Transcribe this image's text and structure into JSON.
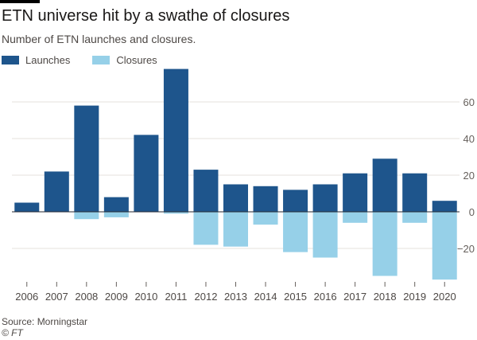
{
  "chart_data": {
    "type": "bar",
    "title": "ETN universe hit by a swathe of closures",
    "subtitle": "Number of ETN launches and closures.",
    "categories": [
      "2006",
      "2007",
      "2008",
      "2009",
      "2010",
      "2011",
      "2012",
      "2013",
      "2014",
      "2015",
      "2016",
      "2017",
      "2018",
      "2019",
      "2020"
    ],
    "series": [
      {
        "name": "Launches",
        "color": "#1e558c",
        "values": [
          5,
          22,
          58,
          8,
          42,
          78,
          23,
          15,
          14,
          12,
          15,
          21,
          29,
          21,
          6
        ]
      },
      {
        "name": "Closures",
        "color": "#96d0e8",
        "values": [
          0,
          0,
          -4,
          -3,
          0,
          -1,
          -18,
          -19,
          -7,
          -22,
          -25,
          -6,
          -35,
          -6,
          -37
        ]
      }
    ],
    "ylim": [
      -37,
      78
    ],
    "yticks": [
      60,
      40,
      20,
      0,
      -20
    ],
    "ytick_labels": [
      "60",
      "40",
      "20",
      "0",
      "−20"
    ],
    "grid": true,
    "legend_position": "top-left",
    "source": "Source: Morningstar",
    "logo": "© FT"
  }
}
